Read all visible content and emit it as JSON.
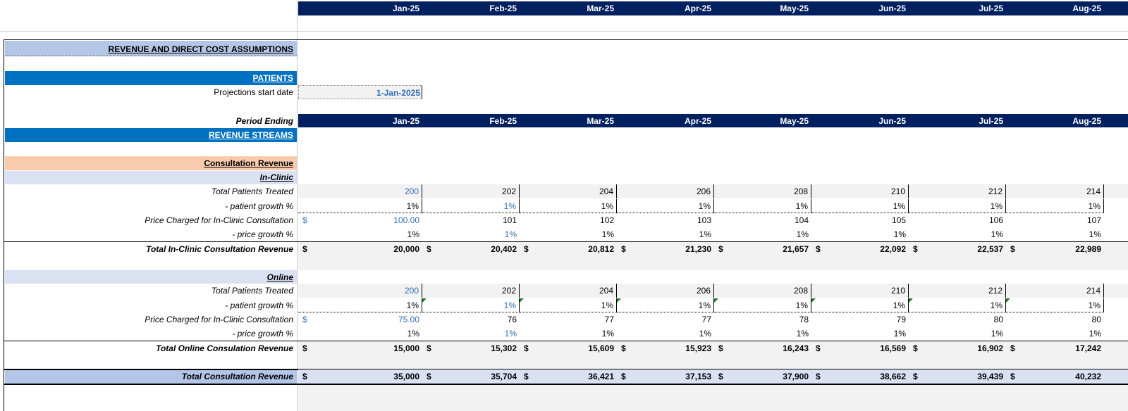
{
  "months": [
    "Jan-25",
    "Feb-25",
    "Mar-25",
    "Apr-25",
    "May-25",
    "Jun-25",
    "Jul-25",
    "Aug-25"
  ],
  "sections": {
    "assumptions_title": "REVENUE AND DIRECT COST ASSUMPTIONS",
    "patients": "PATIENTS",
    "projections_label": "Projections  start date",
    "projections_value": "1-Jan-2025",
    "period_ending": "Period Ending",
    "revenue_streams": "REVENUE STREAMS",
    "consultation_revenue": "Consultation Revenue",
    "in_clinic": "In-Clinic",
    "online": "Online"
  },
  "labels": {
    "total_patients": "Total Patients Treated",
    "patient_growth": "- patient growth %",
    "price_charged": "Price Charged for In-Clinic Consultation",
    "price_growth": "- price growth %",
    "total_in_clinic": "Total In-Clinic Consultation Revenue",
    "total_online": "Total Online Consulation Revenue",
    "total_consultation": "Total Consultation Revenue"
  },
  "currency": "$",
  "in_clinic": {
    "patients": [
      "200",
      "202",
      "204",
      "206",
      "208",
      "210",
      "212",
      "214"
    ],
    "patient_growth": [
      "1%",
      "1%",
      "1%",
      "1%",
      "1%",
      "1%",
      "1%",
      "1%"
    ],
    "price": [
      "100.00",
      "101",
      "102",
      "103",
      "104",
      "105",
      "106",
      "107"
    ],
    "price_growth": [
      "1%",
      "1%",
      "1%",
      "1%",
      "1%",
      "1%",
      "1%",
      "1%"
    ],
    "total": [
      "20,000",
      "20,402",
      "20,812",
      "21,230",
      "21,657",
      "22,092",
      "22,537",
      "22,989"
    ]
  },
  "online": {
    "patients": [
      "200",
      "202",
      "204",
      "206",
      "208",
      "210",
      "212",
      "214"
    ],
    "patient_growth": [
      "1%",
      "1%",
      "1%",
      "1%",
      "1%",
      "1%",
      "1%",
      "1%"
    ],
    "price": [
      "75.00",
      "76",
      "77",
      "77",
      "78",
      "79",
      "80",
      "80"
    ],
    "price_growth": [
      "1%",
      "1%",
      "1%",
      "1%",
      "1%",
      "1%",
      "1%",
      "1%"
    ],
    "total": [
      "15,000",
      "15,302",
      "15,609",
      "15,923",
      "16,243",
      "16,569",
      "16,902",
      "17,242"
    ]
  },
  "total_consultation": [
    "35,000",
    "35,704",
    "36,421",
    "37,153",
    "37,900",
    "38,662",
    "39,439",
    "40,232"
  ],
  "colors": {
    "navy": "#002060",
    "section_blue": "#0070c0",
    "light_blue": "#b4c6e7",
    "peach": "#f8cbad",
    "pale_blue": "#d9e1f2",
    "input_blue": "#2f6db5"
  }
}
